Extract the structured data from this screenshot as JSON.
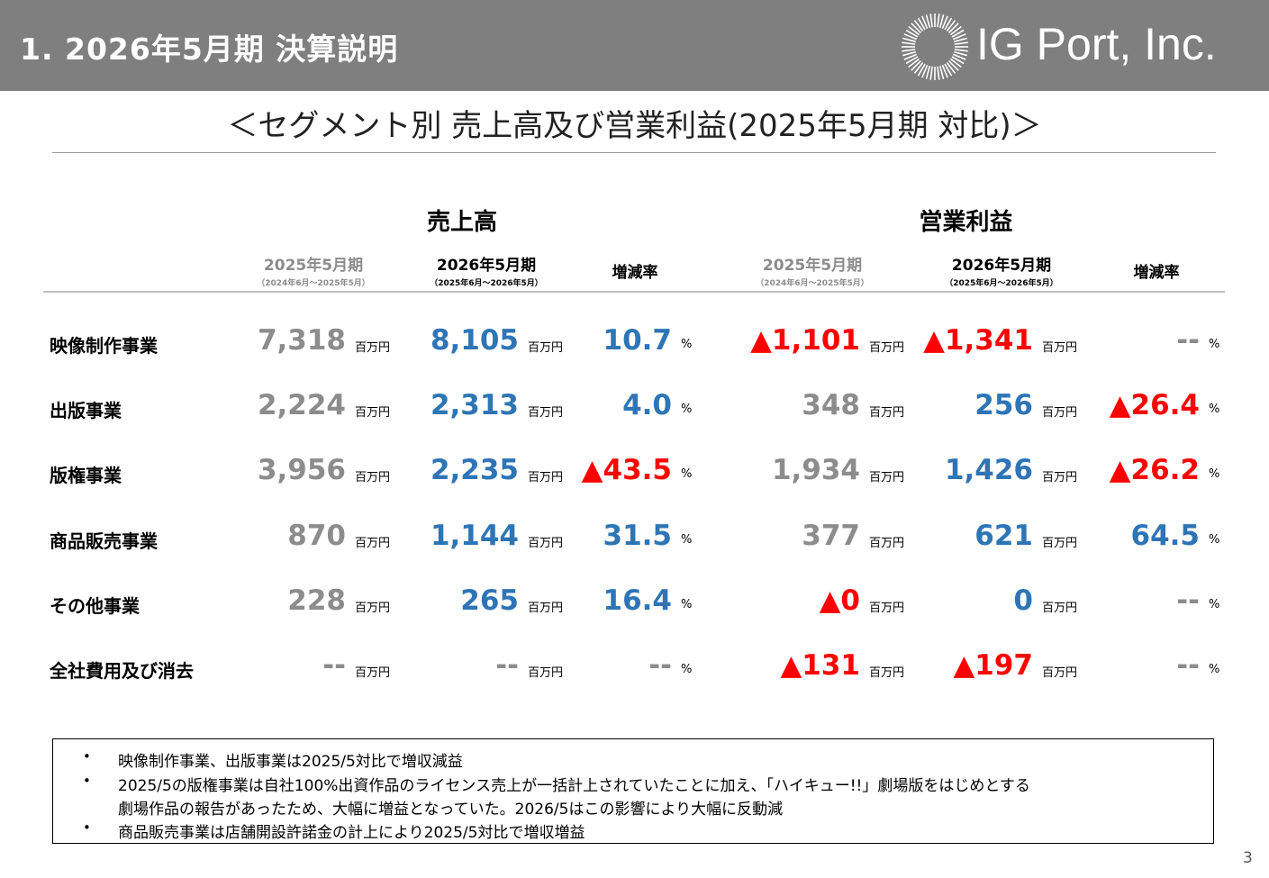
{
  "header": {
    "section_title": "1. 2026年5月期 決算説明",
    "logo_text": "IG Port, Inc."
  },
  "slide_title": "＜セグメント別 売上高及び営業利益(2025年5月期 対比)＞",
  "table": {
    "group_sales": "売上高",
    "group_op": "営業利益",
    "period_prev": "2025年5月期",
    "period_prev_range": "（2024年6月～2025年5月）",
    "period_cur": "2026年5月期",
    "period_cur_range": "（2025年6月～2026年5月）",
    "rate_label": "増減率",
    "rows": [
      {
        "label": "映像制作事業",
        "s_prev": "7,318",
        "s_cur": "8,105",
        "s_rate": "10.7",
        "o_prev": "▲1,101",
        "o_cur": "▲1,341",
        "o_rate": "--",
        "unit": "百万円",
        "pct": "%"
      },
      {
        "label": "出版事業",
        "s_prev": "2,224",
        "s_cur": "2,313",
        "s_rate": "4.0",
        "o_prev": "348",
        "o_cur": "256",
        "o_rate": "▲26.4",
        "unit": "百万円",
        "pct": "%"
      },
      {
        "label": "版権事業",
        "s_prev": "3,956",
        "s_cur": "2,235",
        "s_rate": "▲43.5",
        "o_prev": "1,934",
        "o_cur": "1,426",
        "o_rate": "▲26.2",
        "unit": "百万円",
        "pct": "%"
      },
      {
        "label": "商品販売事業",
        "s_prev": "870",
        "s_cur": "1,144",
        "s_rate": "31.5",
        "o_prev": "377",
        "o_cur": "621",
        "o_rate": "64.5",
        "unit": "百万円",
        "pct": "%"
      },
      {
        "label": "その他事業",
        "s_prev": "228",
        "s_cur": "265",
        "s_rate": "16.4",
        "o_prev": "▲0",
        "o_cur": "0",
        "o_rate": "--",
        "unit": "百万円",
        "pct": "%"
      },
      {
        "label": "全社費用及び消去",
        "s_prev": "--",
        "s_cur": "--",
        "s_rate": "--",
        "o_prev": "▲131",
        "o_cur": "▲197",
        "o_rate": "--",
        "unit": "百万円",
        "pct": "%"
      }
    ]
  },
  "notes": {
    "bullet": "•",
    "items": [
      "映像制作事業、出版事業は2025/5対比で増収減益",
      "2025/5の版権事業は自社100%出資作品のライセンス売上が一括計上されていたことに加え、「ハイキュー!!」劇場版をはじめとする",
      "劇場作品の報告があったため、大幅に増益となっていた。2026/5はこの影響により大幅に反動減",
      "商品販売事業は店舗開設許諾金の計上により2025/5対比で増収増益"
    ]
  },
  "page_number": "3",
  "colors": {
    "header_bg": "#7f7f7f",
    "prev_value": "#8c8c8c",
    "cur_value": "#2e75b6",
    "negative": "#ff0000"
  }
}
